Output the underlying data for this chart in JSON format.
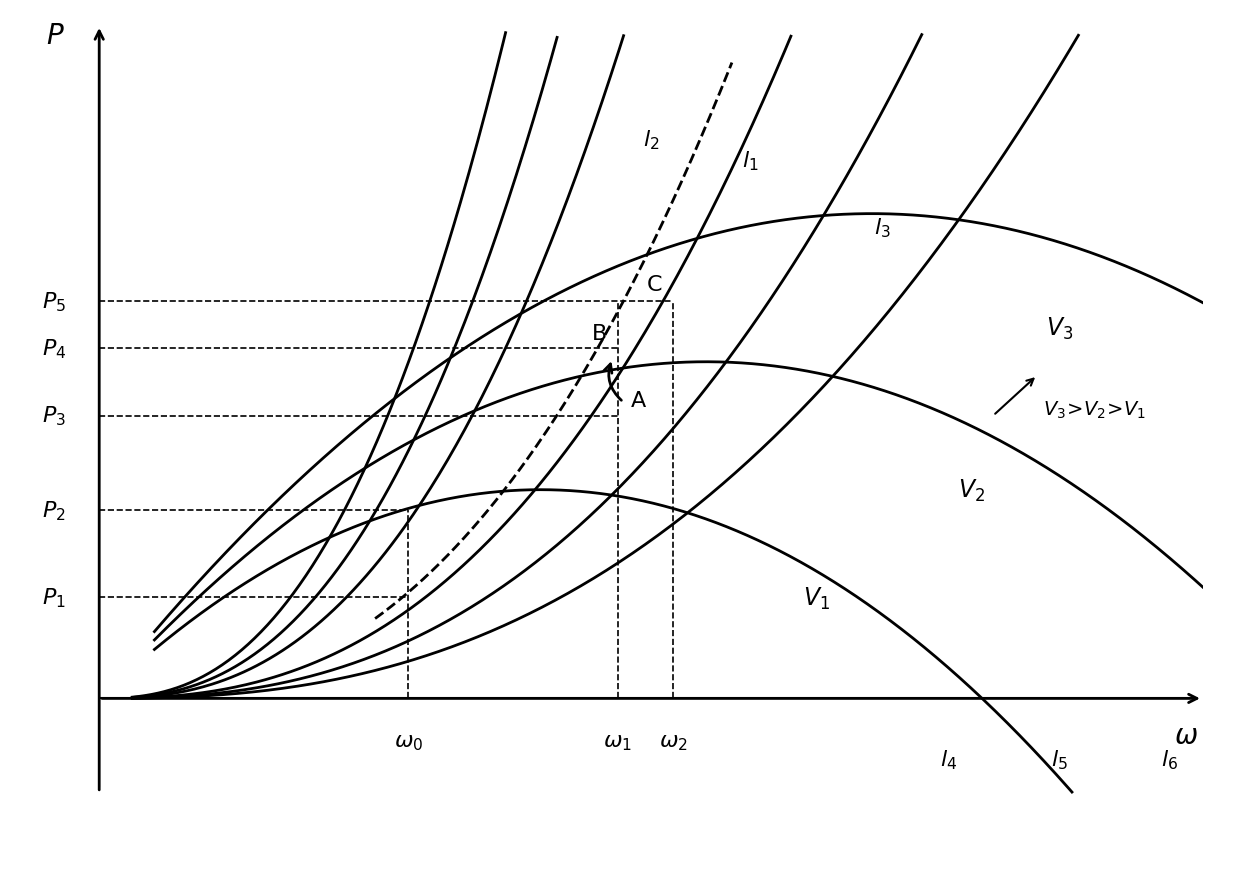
{
  "bg_color": "#ffffff",
  "line_color": "#000000",
  "xlim": [
    0,
    10
  ],
  "ylim": [
    -1.5,
    10
  ],
  "omega_vals": [
    2.8,
    4.7,
    5.2
  ],
  "P_vals": [
    1.5,
    2.8,
    4.2,
    5.2,
    5.9
  ],
  "point_A": [
    4.7,
    4.2
  ],
  "point_B": [
    4.7,
    5.2
  ],
  "point_C": [
    5.2,
    5.9
  ],
  "V1_curve": {
    "omega_max": 4.0,
    "P_max": 3.1,
    "start": 0.5
  },
  "V2_curve": {
    "omega_max": 5.5,
    "P_max": 5.0,
    "start": 0.5
  },
  "V3_curve": {
    "omega_max": 7.0,
    "P_max": 7.2,
    "start": 0.5
  },
  "l_scales": [
    0.38,
    0.28,
    0.2,
    0.1,
    0.065,
    0.042
  ],
  "l_exp": 2.5,
  "dashed_scale": 0.12,
  "dashed_exp": 2.5
}
